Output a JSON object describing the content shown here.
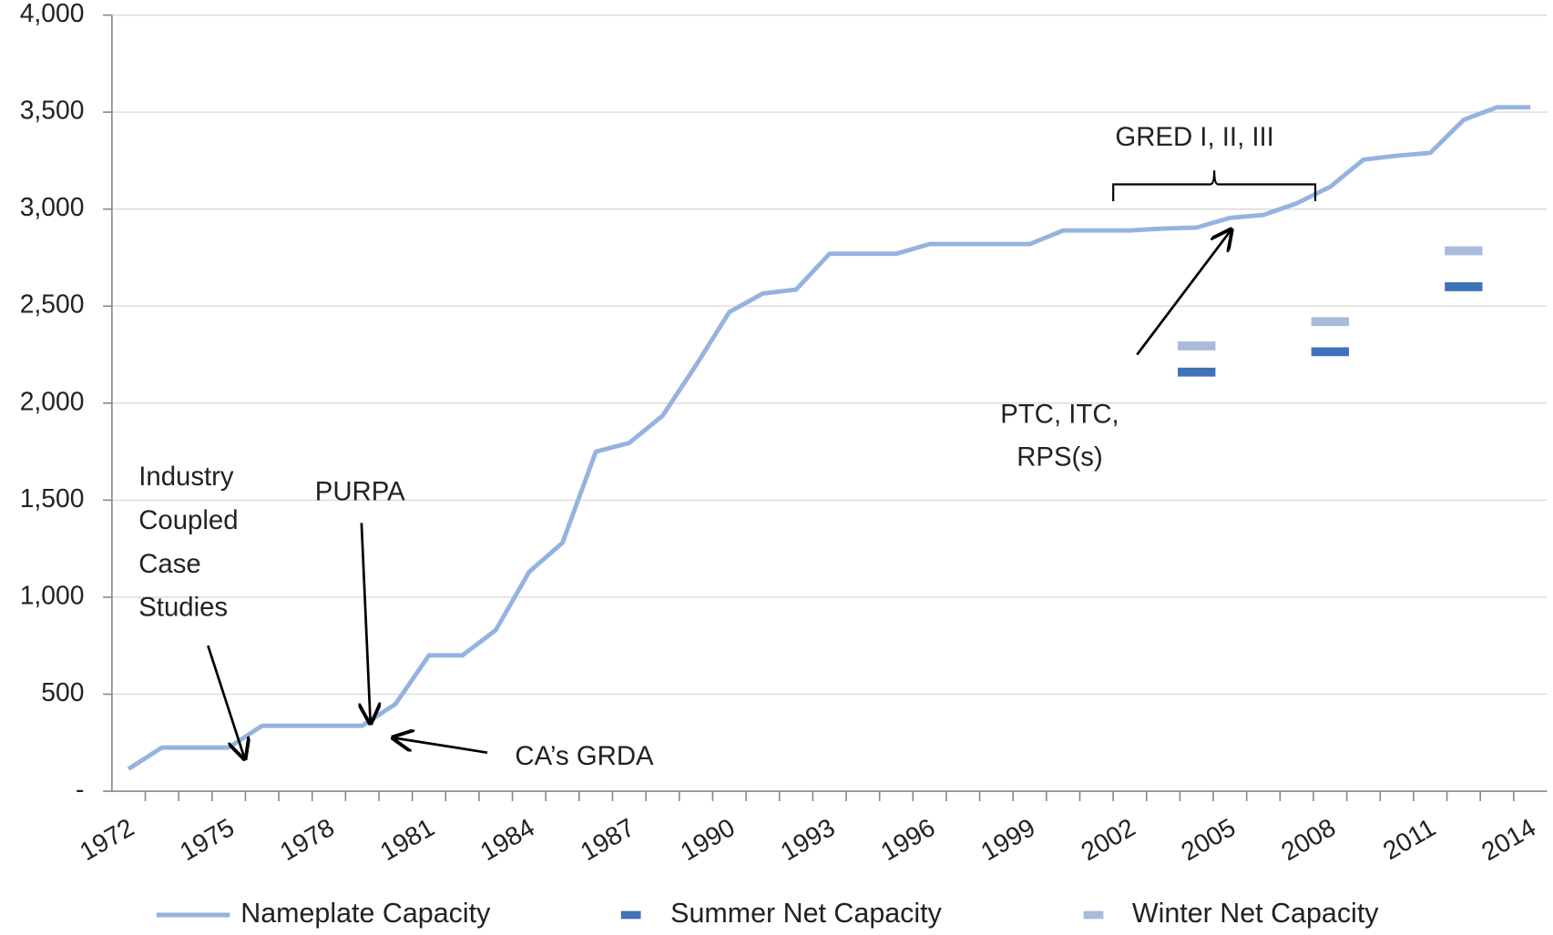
{
  "chart_data": {
    "type": "line",
    "categories": [
      "1972",
      null,
      null,
      "1975",
      null,
      null,
      "1978",
      null,
      null,
      "1981",
      null,
      null,
      "1984",
      null,
      null,
      "1987",
      null,
      null,
      "1990",
      null,
      null,
      "1993",
      null,
      null,
      "1996",
      null,
      null,
      "1999",
      null,
      null,
      "2002",
      null,
      null,
      "2005",
      null,
      null,
      "2008",
      null,
      null,
      "2011",
      null,
      null,
      "2014"
    ],
    "series": [
      {
        "name": "Nameplate Capacity",
        "color": "#95b3e0",
        "values": [
          115,
          225,
          225,
          225,
          337,
          337,
          337,
          337,
          450,
          700,
          700,
          830,
          1130,
          1280,
          1750,
          1795,
          1935,
          2195,
          2470,
          2565,
          2585,
          2770,
          2770,
          2770,
          2820,
          2820,
          2820,
          2820,
          2890,
          2890,
          2890,
          2900,
          2905,
          2955,
          2970,
          3030,
          3115,
          3255,
          3275,
          3290,
          3460,
          3525,
          3525
        ]
      },
      {
        "name": "Summer Net Capacity",
        "color": "#3f72b8",
        "marker": "dash",
        "values": [
          null,
          null,
          null,
          null,
          null,
          null,
          null,
          null,
          null,
          null,
          null,
          null,
          null,
          null,
          null,
          null,
          null,
          null,
          null,
          null,
          null,
          null,
          null,
          null,
          null,
          null,
          null,
          null,
          null,
          null,
          null,
          null,
          2160,
          null,
          null,
          null,
          2265,
          null,
          null,
          null,
          2600,
          null,
          null
        ]
      },
      {
        "name": "Winter Net Capacity",
        "color": "#a9bada",
        "marker": "dash",
        "values": [
          null,
          null,
          null,
          null,
          null,
          null,
          null,
          null,
          null,
          null,
          null,
          null,
          null,
          null,
          null,
          null,
          null,
          null,
          null,
          null,
          null,
          null,
          null,
          null,
          null,
          null,
          null,
          null,
          null,
          null,
          null,
          null,
          2295,
          null,
          null,
          null,
          2420,
          null,
          null,
          null,
          2785,
          null,
          null
        ]
      }
    ],
    "ylim": [
      0,
      4000
    ],
    "yticks": [
      {
        "value": 0,
        "label": "-"
      },
      500,
      {
        "value": 1000,
        "label": "1,000"
      },
      {
        "value": 1500,
        "label": "1,500"
      },
      {
        "value": 2000,
        "label": "2,000"
      },
      {
        "value": 2500,
        "label": "2,500"
      },
      {
        "value": 3000,
        "label": "3,000"
      },
      {
        "value": 3500,
        "label": "3,500"
      },
      {
        "value": 4000,
        "label": "4,000"
      }
    ],
    "grid": true,
    "legend": "bottom",
    "annotations": [
      {
        "lines": [
          "Industry",
          "Coupled",
          "Case",
          "Studies"
        ]
      },
      {
        "lines": [
          "PURPA"
        ]
      },
      {
        "lines": [
          "CA’s GRDA"
        ]
      },
      {
        "lines": [
          "GRED I, II, III"
        ]
      },
      {
        "lines": [
          "PTC, ITC,",
          "RPS(s)"
        ]
      }
    ]
  }
}
